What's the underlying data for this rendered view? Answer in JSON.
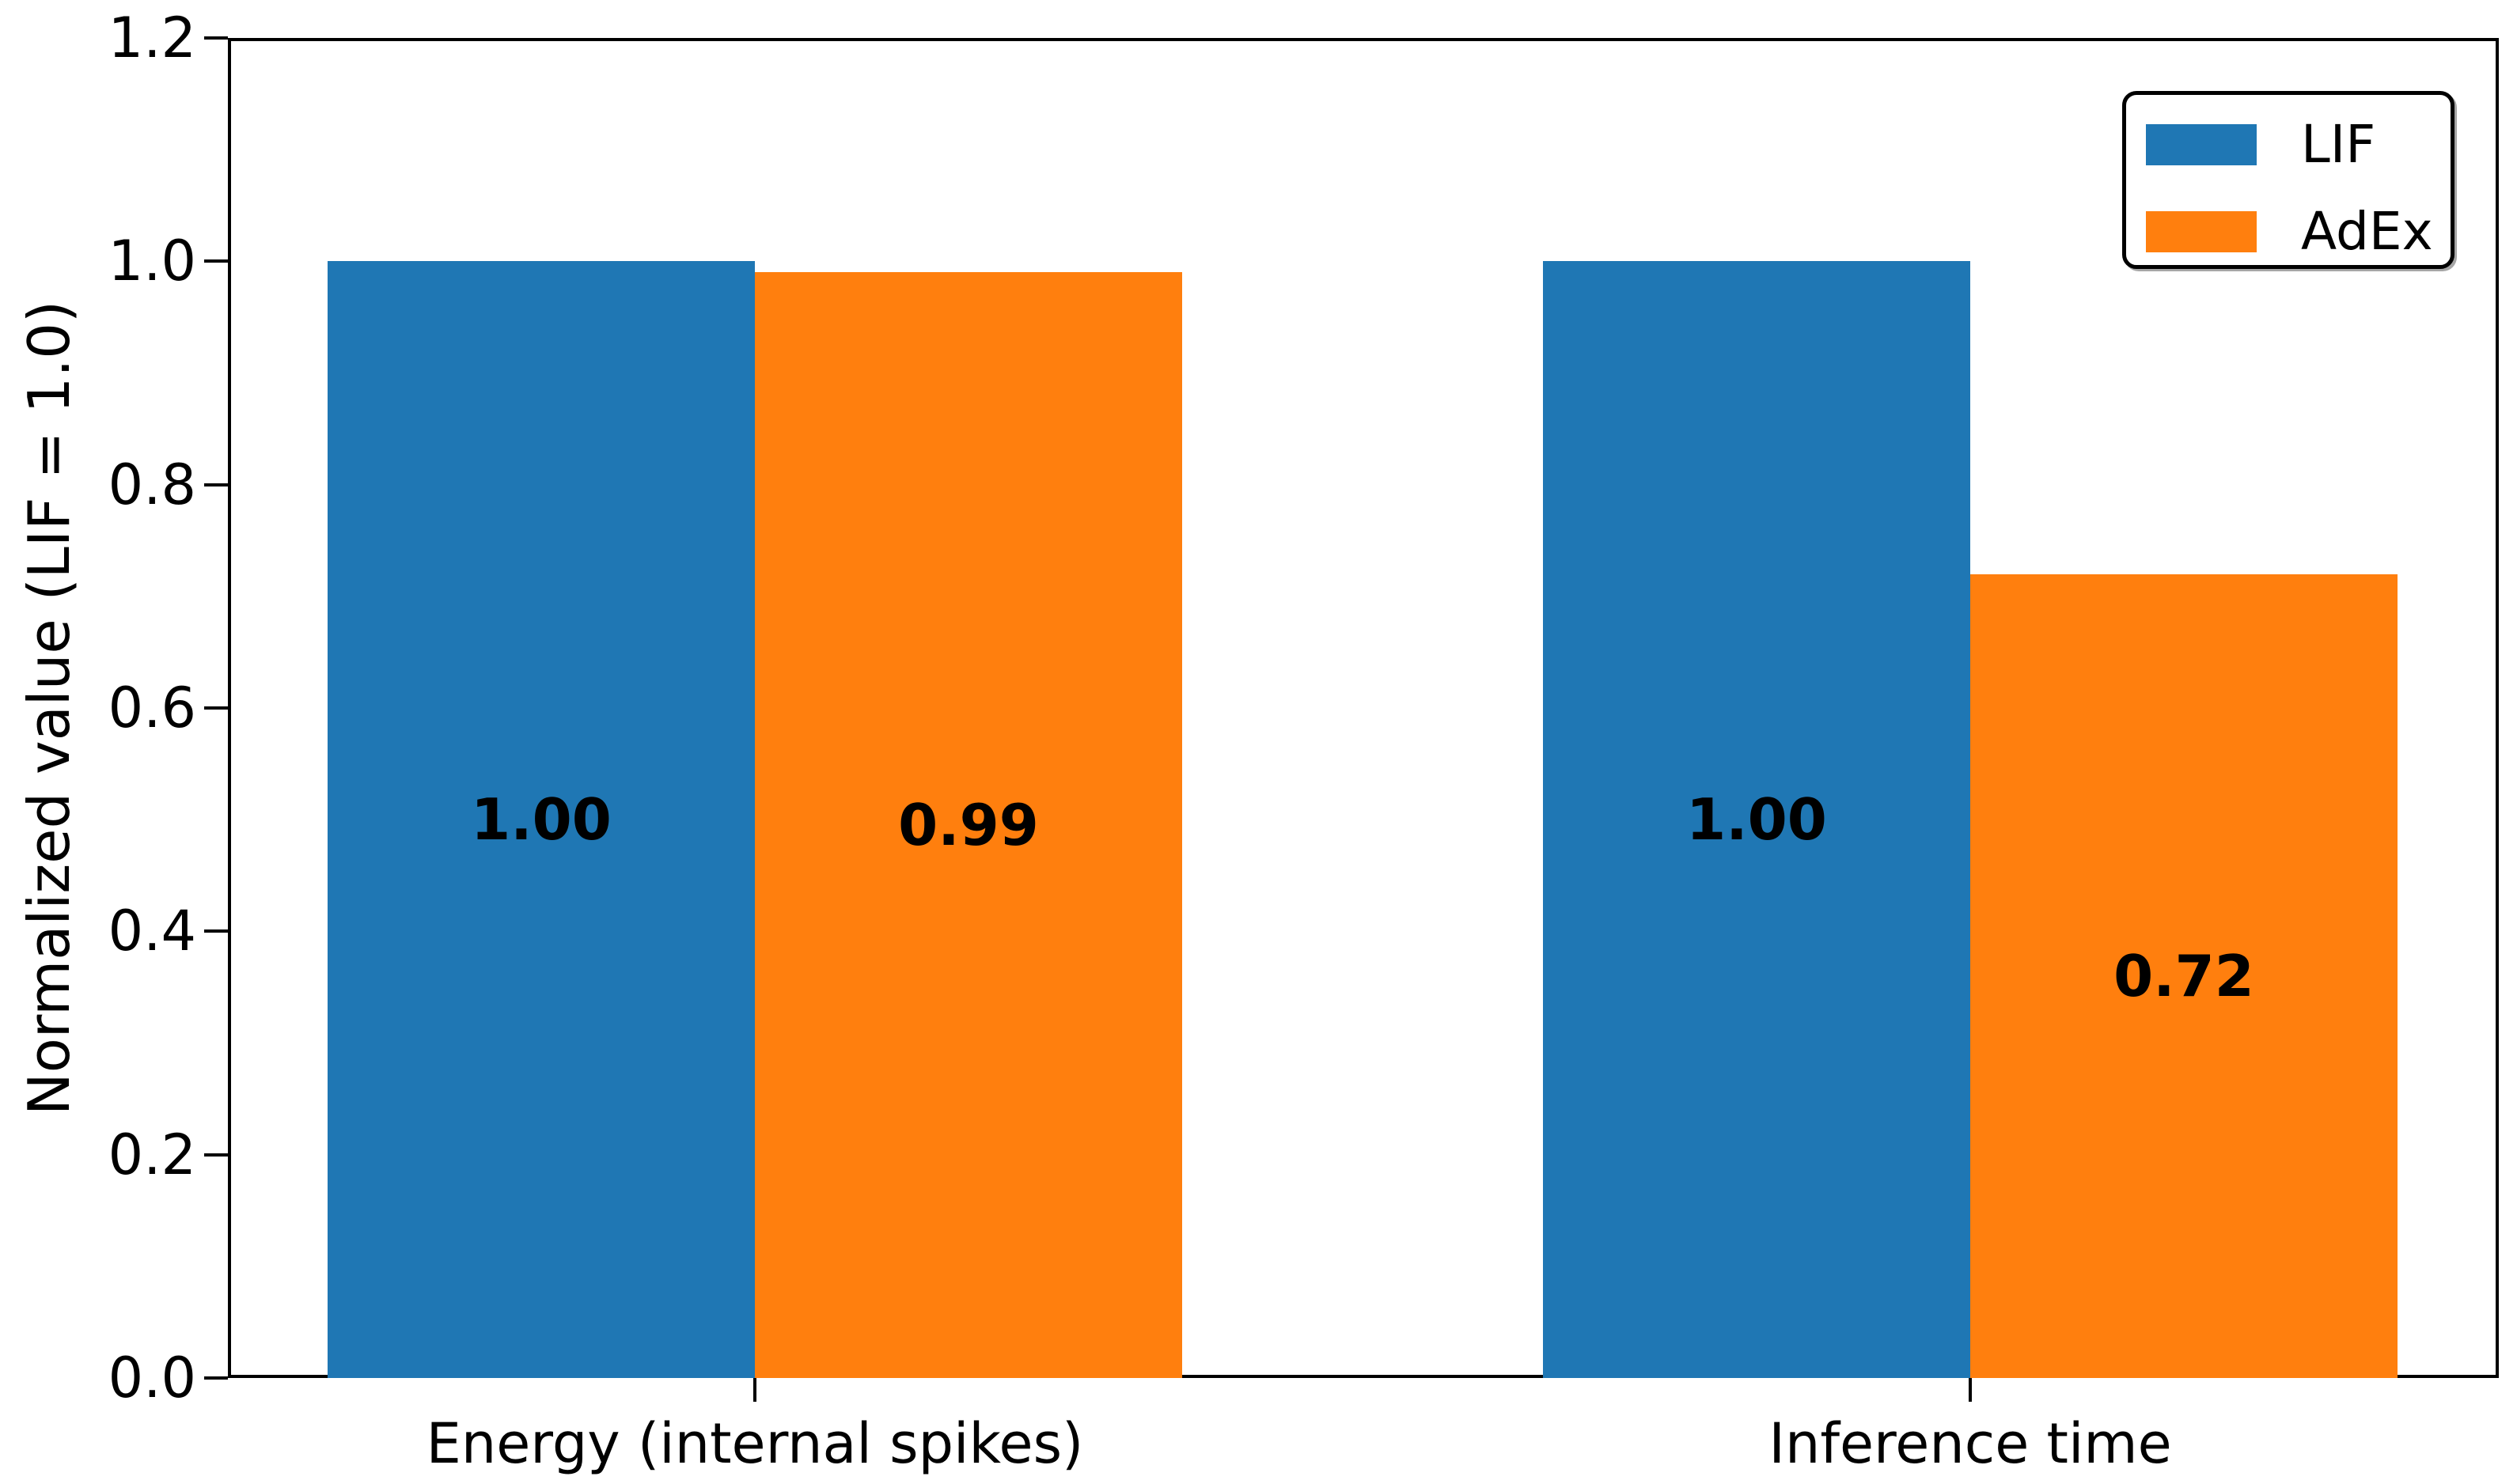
{
  "chart_data": {
    "type": "bar",
    "categories": [
      "Energy (internal spikes)",
      "Inference time"
    ],
    "series": [
      {
        "name": "LIF",
        "color": "#1f77b4",
        "values": [
          1.0,
          1.0
        ],
        "labels": [
          "1.00",
          "1.00"
        ]
      },
      {
        "name": "AdEx",
        "color": "#ff7f0e",
        "values": [
          0.99,
          0.72
        ],
        "labels": [
          "0.99",
          "0.72"
        ]
      }
    ],
    "title": "",
    "xlabel": "",
    "ylabel": "Normalized value (LIF = 1.0)",
    "ylim": [
      0,
      1.2
    ],
    "yticks": [
      "0.0",
      "0.2",
      "0.4",
      "0.6",
      "0.8",
      "1.0",
      "1.2"
    ],
    "grid": "off",
    "legend_position": "upper right",
    "bar_label_position": "center of bar"
  }
}
